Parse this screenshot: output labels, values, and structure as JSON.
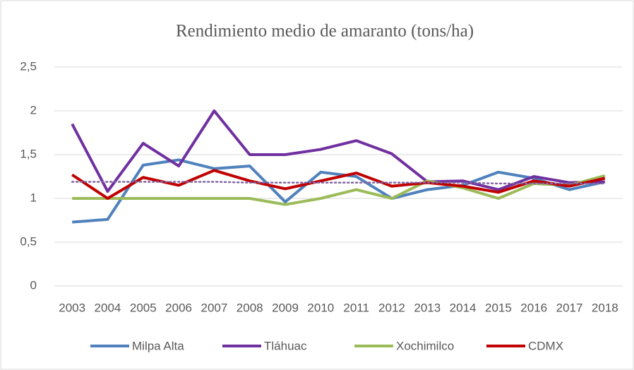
{
  "chart_data": {
    "type": "line",
    "title": "Rendimiento medio de amaranto (tons/ha)",
    "categories": [
      "2003",
      "2004",
      "2005",
      "2006",
      "2007",
      "2008",
      "2009",
      "2010",
      "2011",
      "2012",
      "2013",
      "2014",
      "2015",
      "2016",
      "2017",
      "2018"
    ],
    "series": [
      {
        "name": "Milpa Alta",
        "color": "#4f81bd",
        "values": [
          0.73,
          0.76,
          1.38,
          1.44,
          1.34,
          1.37,
          0.96,
          1.3,
          1.25,
          1.0,
          1.1,
          1.15,
          1.3,
          1.23,
          1.1,
          1.19
        ]
      },
      {
        "name": "Tláhuac",
        "color": "#7030a0",
        "values": [
          1.85,
          1.08,
          1.63,
          1.37,
          2.0,
          1.5,
          1.5,
          1.56,
          1.66,
          1.51,
          1.19,
          1.2,
          1.1,
          1.25,
          1.18,
          1.19
        ]
      },
      {
        "name": "Xochimilco",
        "color": "#9bbb59",
        "values": [
          1.0,
          1.0,
          1.0,
          1.0,
          1.0,
          1.0,
          0.93,
          1.0,
          1.1,
          1.0,
          1.2,
          1.12,
          1.0,
          1.17,
          1.15,
          1.26
        ]
      },
      {
        "name": "CDMX",
        "color": "#c00000",
        "values": [
          1.27,
          1.0,
          1.24,
          1.15,
          1.32,
          1.2,
          1.11,
          1.2,
          1.29,
          1.14,
          1.18,
          1.14,
          1.07,
          1.2,
          1.14,
          1.23
        ]
      }
    ],
    "trendline": {
      "color": "#8064a2",
      "values": [
        1.19,
        1.19,
        1.19,
        1.19,
        1.19,
        1.18,
        1.18,
        1.18,
        1.18,
        1.18,
        1.18,
        1.18,
        1.17,
        1.17,
        1.17,
        1.17
      ]
    },
    "ylim": [
      0,
      2.5
    ],
    "yticks": [
      0,
      {
        "value": 0.5,
        "label": "0,5"
      },
      1,
      {
        "value": 1.5,
        "label": "1,5"
      },
      2,
      {
        "value": 2.5,
        "label": "2,5"
      }
    ],
    "grid": true,
    "legend": "bottom"
  }
}
